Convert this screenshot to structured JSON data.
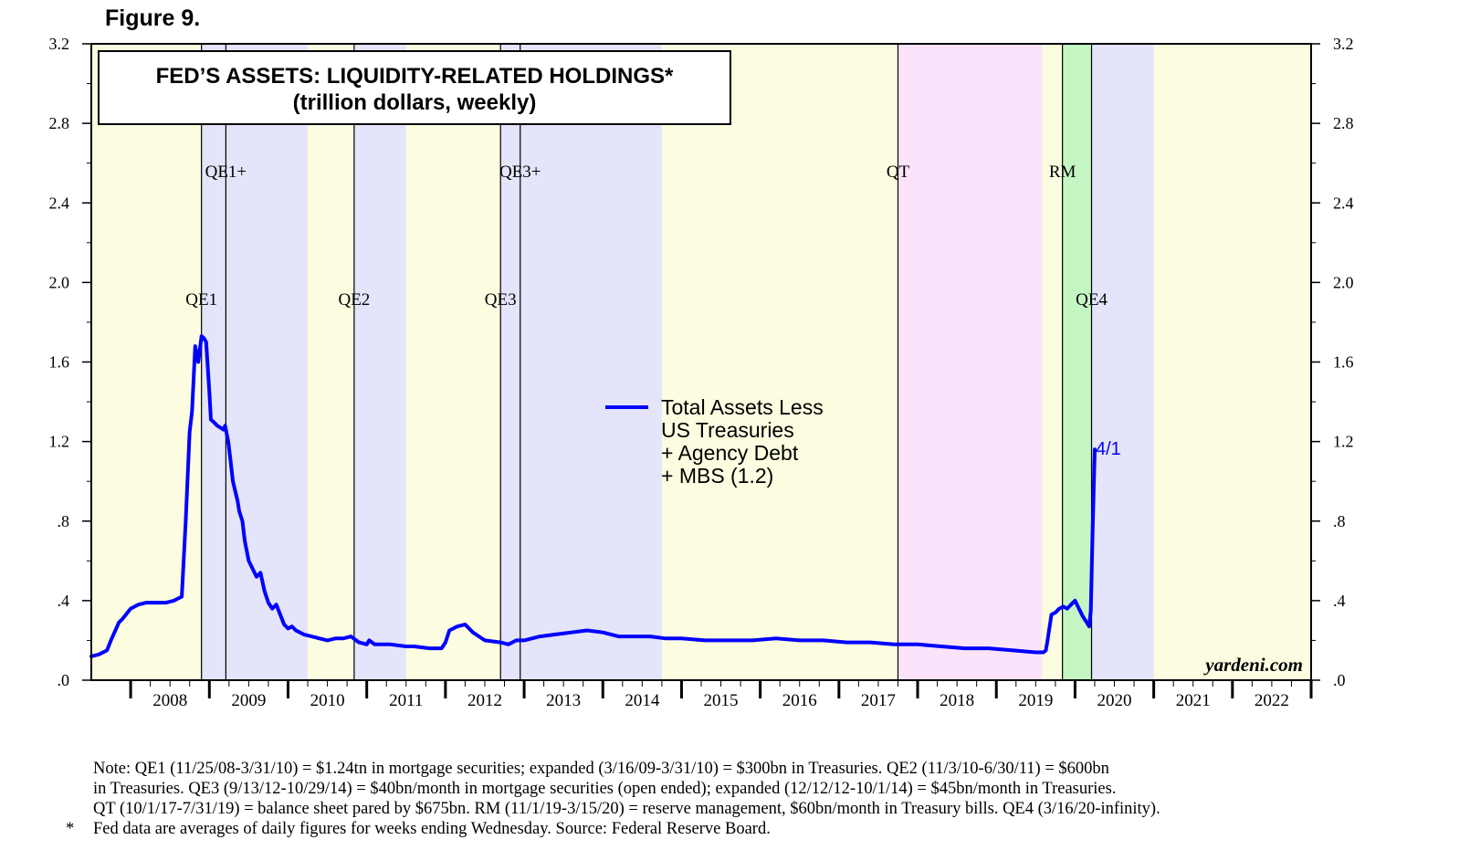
{
  "figure_label": "Figure 9.",
  "chart_data": {
    "type": "line",
    "title": "FED’S ASSETS: LIQUIDITY-RELATED HOLDINGS*",
    "subtitle": "(trillion dollars, weekly)",
    "xlabel": "",
    "ylabel": "",
    "ylim": [
      0,
      3.2
    ],
    "xlim": [
      2007.5,
      2023.0
    ],
    "y_ticks": [
      0,
      0.4,
      0.8,
      1.2,
      1.6,
      2.0,
      2.4,
      2.8,
      3.2
    ],
    "y_tick_labels_left": [
      ".0",
      ".4",
      ".8",
      "1.2",
      "1.6",
      "2.0",
      "2.4",
      "2.8",
      "3.2"
    ],
    "y_tick_labels_right": [
      ".0",
      ".4",
      ".8",
      "1.2",
      "1.6",
      "2.0",
      "2.4",
      "2.8",
      "3.2"
    ],
    "x_ticks": [
      "2008",
      "2009",
      "2010",
      "2011",
      "2012",
      "2013",
      "2014",
      "2015",
      "2016",
      "2017",
      "2018",
      "2019",
      "2020",
      "2021",
      "2022"
    ],
    "colors": {
      "line": "#0000ff",
      "neutral_band": "#fcfce1",
      "qe_band": "#e4e4fa",
      "qt_band": "#fbe3fb",
      "rm_band": "#c4f6c4"
    },
    "bands": [
      {
        "type": "qe",
        "start": 2008.9,
        "end": 2010.25
      },
      {
        "type": "qe",
        "start": 2010.84,
        "end": 2011.5
      },
      {
        "type": "qe",
        "start": 2012.7,
        "end": 2014.75
      },
      {
        "type": "qt",
        "start": 2017.75,
        "end": 2019.58
      },
      {
        "type": "rm",
        "start": 2019.84,
        "end": 2020.21
      },
      {
        "type": "qe",
        "start": 2020.21,
        "end": 2021.0
      }
    ],
    "program_lines": [
      {
        "x": 2008.9,
        "label": "QE1",
        "row": "lower"
      },
      {
        "x": 2009.21,
        "label": "QE1+",
        "row": "upper"
      },
      {
        "x": 2010.84,
        "label": "QE2",
        "row": "lower"
      },
      {
        "x": 2012.7,
        "label": "QE3",
        "row": "lower"
      },
      {
        "x": 2012.95,
        "label": "QE3+",
        "row": "upper"
      },
      {
        "x": 2017.75,
        "label": "QT",
        "row": "upper"
      },
      {
        "x": 2019.84,
        "label": "RM",
        "row": "upper"
      },
      {
        "x": 2020.21,
        "label": "QE4",
        "row": "lower"
      }
    ],
    "legend": [
      "Total Assets Less",
      "US Treasuries",
      "+ Agency Debt",
      "+ MBS (1.2)"
    ],
    "end_label": "4/1",
    "credit": "yardeni.com",
    "series": [
      {
        "name": "Total Assets Less US Treasuries + Agency Debt + MBS",
        "x": [
          2007.5,
          2007.6,
          2007.7,
          2007.75,
          2007.85,
          2007.9,
          2008.0,
          2008.1,
          2008.2,
          2008.3,
          2008.45,
          2008.55,
          2008.65,
          2008.7,
          2008.75,
          2008.78,
          2008.82,
          2008.86,
          2008.9,
          2008.93,
          2008.96,
          2009.0,
          2009.02,
          2009.05,
          2009.1,
          2009.18,
          2009.2,
          2009.24,
          2009.27,
          2009.3,
          2009.33,
          2009.36,
          2009.38,
          2009.42,
          2009.45,
          2009.5,
          2009.55,
          2009.6,
          2009.65,
          2009.7,
          2009.75,
          2009.8,
          2009.85,
          2009.9,
          2009.95,
          2010.0,
          2010.05,
          2010.1,
          2010.15,
          2010.2,
          2010.3,
          2010.4,
          2010.5,
          2010.6,
          2010.7,
          2010.8,
          2010.9,
          2011.0,
          2011.03,
          2011.1,
          2011.3,
          2011.5,
          2011.6,
          2011.8,
          2011.95,
          2012.0,
          2012.05,
          2012.15,
          2012.25,
          2012.35,
          2012.5,
          2012.7,
          2012.8,
          2012.85,
          2012.9,
          2013.0,
          2013.2,
          2013.4,
          2013.6,
          2013.8,
          2014.0,
          2014.2,
          2014.4,
          2014.6,
          2014.8,
          2015.0,
          2015.3,
          2015.6,
          2015.9,
          2016.2,
          2016.5,
          2016.8,
          2017.1,
          2017.4,
          2017.7,
          2018.0,
          2018.3,
          2018.6,
          2018.9,
          2019.2,
          2019.5,
          2019.6,
          2019.63,
          2019.65,
          2019.7,
          2019.75,
          2019.8,
          2019.85,
          2019.9,
          2019.95,
          2020.0,
          2020.05,
          2020.1,
          2020.15,
          2020.18,
          2020.2,
          2020.22,
          2020.25
        ],
        "values": [
          0.12,
          0.13,
          0.15,
          0.2,
          0.29,
          0.31,
          0.36,
          0.38,
          0.39,
          0.39,
          0.39,
          0.4,
          0.42,
          0.8,
          1.25,
          1.35,
          1.68,
          1.6,
          1.73,
          1.72,
          1.7,
          1.45,
          1.31,
          1.3,
          1.28,
          1.26,
          1.28,
          1.2,
          1.1,
          1.0,
          0.95,
          0.9,
          0.85,
          0.8,
          0.7,
          0.6,
          0.56,
          0.52,
          0.54,
          0.45,
          0.39,
          0.36,
          0.38,
          0.33,
          0.28,
          0.26,
          0.27,
          0.25,
          0.24,
          0.23,
          0.22,
          0.21,
          0.2,
          0.21,
          0.21,
          0.22,
          0.19,
          0.18,
          0.2,
          0.18,
          0.18,
          0.17,
          0.17,
          0.16,
          0.16,
          0.19,
          0.25,
          0.27,
          0.28,
          0.24,
          0.2,
          0.19,
          0.18,
          0.19,
          0.2,
          0.2,
          0.22,
          0.23,
          0.24,
          0.25,
          0.24,
          0.22,
          0.22,
          0.22,
          0.21,
          0.21,
          0.2,
          0.2,
          0.2,
          0.21,
          0.2,
          0.2,
          0.19,
          0.19,
          0.18,
          0.18,
          0.17,
          0.16,
          0.16,
          0.15,
          0.14,
          0.14,
          0.15,
          0.2,
          0.33,
          0.34,
          0.36,
          0.37,
          0.36,
          0.38,
          0.4,
          0.36,
          0.32,
          0.29,
          0.27,
          0.35,
          0.7,
          1.16
        ]
      }
    ]
  },
  "notes": {
    "lines": [
      "Note: QE1 (11/25/08-3/31/10) = $1.24tn in mortgage securities; expanded (3/16/09-3/31/10) = $300bn in Treasuries. QE2 (11/3/10-6/30/11) = $600bn",
      "in Treasuries. QE3 (9/13/12-10/29/14) = $40bn/month in mortgage securities (open ended); expanded (12/12/12-10/1/14) = $45bn/month in Treasuries.",
      "QT (10/1/17-7/31/19) = balance sheet pared by $675bn. RM (11/1/19-3/15/20) = reserve management, $60bn/month in Treasury bills. QE4 (3/16/20-infinity)."
    ],
    "star_marker": "*",
    "star_text": "Fed data are averages of daily figures for weeks ending Wednesday. Source: Federal Reserve Board."
  }
}
